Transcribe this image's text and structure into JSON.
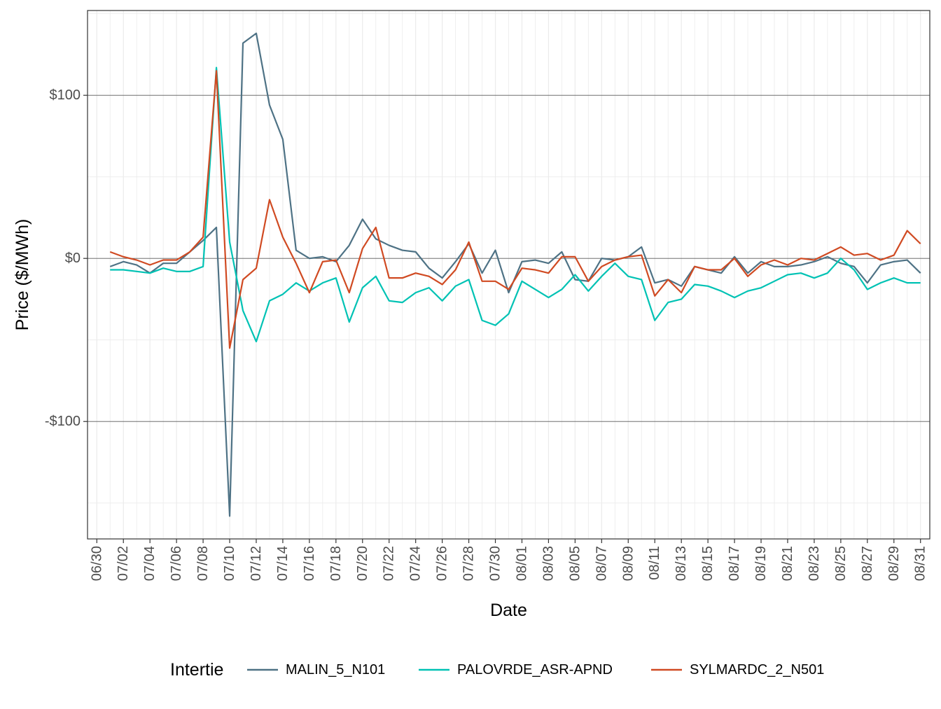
{
  "chart_data": {
    "type": "line",
    "title": "",
    "xlabel": "Date",
    "ylabel": "Price ($/MWh)",
    "x": [
      "07/01",
      "07/02",
      "07/03",
      "07/04",
      "07/05",
      "07/06",
      "07/07",
      "07/08",
      "07/09",
      "07/10",
      "07/11",
      "07/12",
      "07/13",
      "07/14",
      "07/15",
      "07/16",
      "07/17",
      "07/18",
      "07/19",
      "07/20",
      "07/21",
      "07/22",
      "07/23",
      "07/24",
      "07/25",
      "07/26",
      "07/27",
      "07/28",
      "07/29",
      "07/30",
      "07/31",
      "08/01",
      "08/02",
      "08/03",
      "08/04",
      "08/05",
      "08/06",
      "08/07",
      "08/08",
      "08/09",
      "08/10",
      "08/11",
      "08/12",
      "08/13",
      "08/14",
      "08/15",
      "08/16",
      "08/17",
      "08/18",
      "08/19",
      "08/20",
      "08/21",
      "08/22",
      "08/23",
      "08/24",
      "08/25",
      "08/26",
      "08/27",
      "08/28",
      "08/29",
      "08/30",
      "08/31"
    ],
    "x_ticks": [
      "06/30",
      "07/02",
      "07/04",
      "07/06",
      "07/08",
      "07/10",
      "07/12",
      "07/14",
      "07/16",
      "07/18",
      "07/20",
      "07/22",
      "07/24",
      "07/26",
      "07/28",
      "07/30",
      "08/01",
      "08/03",
      "08/05",
      "08/07",
      "08/09",
      "08/11",
      "08/13",
      "08/15",
      "08/17",
      "08/19",
      "08/21",
      "08/23",
      "08/25",
      "08/27",
      "08/29",
      "08/31"
    ],
    "y_ticks": [
      {
        "value": 100,
        "label": "$100"
      },
      {
        "value": 0,
        "label": "$0"
      },
      {
        "value": -100,
        "label": "-$100"
      }
    ],
    "ylim": [
      -172,
      152
    ],
    "legend_title": "Intertie",
    "legend_position": "bottom",
    "grid": true,
    "series": [
      {
        "name": "MALIN_5_N101",
        "color": "#4e7285",
        "values": [
          -5,
          -2,
          -4,
          -9,
          -3,
          -3,
          4,
          11,
          19,
          -158,
          132,
          138,
          94,
          73,
          5,
          0,
          1,
          -2,
          8,
          24,
          12,
          8,
          5,
          4,
          -6,
          -12,
          -2,
          9,
          -9,
          5,
          -21,
          -2,
          -1,
          -3,
          4,
          -13,
          -14,
          0,
          -1,
          1,
          7,
          -15,
          -13,
          -17,
          -5,
          -7,
          -9,
          1,
          -9,
          -2,
          -5,
          -5,
          -4,
          -2,
          1,
          -3,
          -5,
          -15,
          -4,
          -2,
          -1,
          -9
        ]
      },
      {
        "name": "PALOVRDE_ASR-APND",
        "color": "#00c2b4",
        "values": [
          -7,
          -7,
          -8,
          -9,
          -6,
          -8,
          -8,
          -5,
          117,
          10,
          -32,
          -51,
          -26,
          -22,
          -15,
          -20,
          -15,
          -12,
          -39,
          -18,
          -11,
          -26,
          -27,
          -21,
          -18,
          -26,
          -17,
          -13,
          -38,
          -41,
          -34,
          -14,
          -19,
          -24,
          -19,
          -10,
          -20,
          -11,
          -3,
          -11,
          -13,
          -38,
          -27,
          -25,
          -16,
          -17,
          -20,
          -24,
          -20,
          -18,
          -14,
          -10,
          -9,
          -12,
          -9,
          0,
          -7,
          -19,
          -15,
          -12,
          -15,
          -15
        ]
      },
      {
        "name": "SYLMARDC_2_N501",
        "color": "#d04a22",
        "values": [
          4,
          1,
          -1,
          -4,
          -1,
          -1,
          4,
          13,
          115,
          -55,
          -13,
          -6,
          36,
          13,
          -3,
          -21,
          -2,
          -1,
          -21,
          6,
          19,
          -12,
          -12,
          -9,
          -11,
          -16,
          -7,
          10,
          -14,
          -14,
          -19,
          -6,
          -7,
          -9,
          1,
          1,
          -14,
          -5,
          -1,
          1,
          2,
          -23,
          -13,
          -21,
          -5,
          -7,
          -7,
          0,
          -11,
          -4,
          -1,
          -4,
          0,
          -1,
          3,
          7,
          2,
          3,
          -1,
          2,
          17,
          9
        ]
      }
    ]
  }
}
